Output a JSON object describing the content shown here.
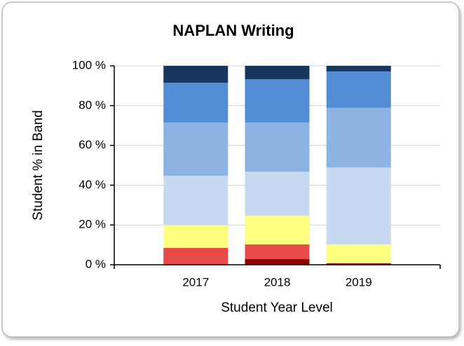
{
  "chart_data": {
    "type": "stacked_bar",
    "title": "NAPLAN Writing",
    "xlabel": "Student Year Level",
    "ylabel": "Student % in Band",
    "categories": [
      "2017",
      "2018",
      "2019"
    ],
    "series": [
      {
        "color": "#8b0000",
        "values": [
          0,
          2.8,
          0.7
        ]
      },
      {
        "color": "#e84a4a",
        "values": [
          8.5,
          7.4,
          0
        ]
      },
      {
        "color": "#ffff80",
        "values": [
          11.5,
          14.4,
          9.5
        ]
      },
      {
        "color": "#c6d9f1",
        "values": [
          24.7,
          22.2,
          38.7
        ]
      },
      {
        "color": "#8db3e2",
        "values": [
          26.8,
          24.7,
          30
        ]
      },
      {
        "color": "#538dd5",
        "values": [
          20,
          21.8,
          18.3
        ]
      },
      {
        "color": "#17375e",
        "values": [
          8.5,
          6.7,
          2.8
        ]
      }
    ],
    "ylim": [
      0,
      100
    ],
    "yticks": [
      {
        "value": 0,
        "label": "0 %"
      },
      {
        "value": 20,
        "label": "20 %"
      },
      {
        "value": 40,
        "label": "40 %"
      },
      {
        "value": 60,
        "label": "60 %"
      },
      {
        "value": 80,
        "label": "80 %"
      },
      {
        "value": 100,
        "label": "100 %"
      }
    ],
    "grid": true
  }
}
